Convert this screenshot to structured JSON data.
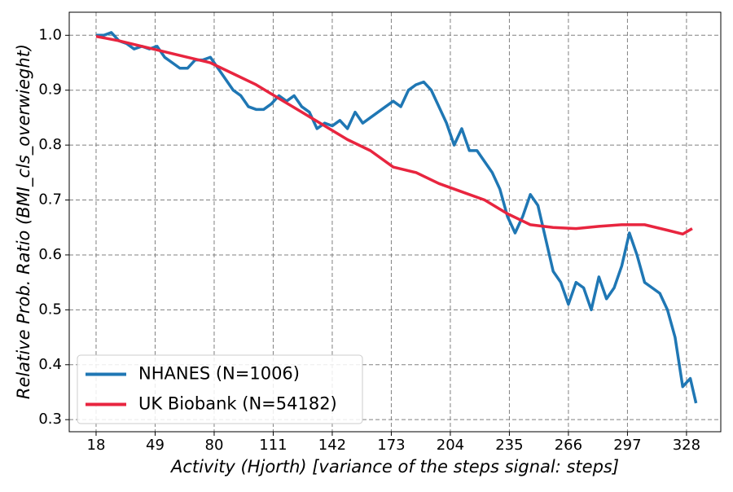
{
  "chart_data": {
    "type": "line",
    "xlabel": "Activity (Hjorth) [variance of the steps signal: steps]",
    "ylabel": "Relative Prob. Ratio (BMI_cls_overwieght)",
    "xlim": [
      3.9,
      346
    ],
    "ylim": [
      0.278,
      1.042
    ],
    "xticks": [
      18,
      49,
      80,
      111,
      142,
      173,
      204,
      235,
      266,
      297,
      328
    ],
    "yticks": [
      {
        "value": 1.0,
        "label": "1.0"
      },
      0.9,
      0.8,
      0.7,
      0.6,
      0.5,
      0.4,
      0.3
    ],
    "grid": true,
    "legend": "lower left",
    "series": [
      {
        "name": "NHANES (N=1006)",
        "color": "#1f77b4",
        "x": [
          18,
          22,
          26,
          30,
          34,
          38,
          42,
          46,
          50,
          54,
          58,
          62,
          66,
          70,
          74,
          78,
          82,
          86,
          90,
          94,
          98,
          102,
          106,
          110,
          114,
          118,
          122,
          126,
          130,
          134,
          138,
          142,
          146,
          150,
          154,
          158,
          162,
          166,
          170,
          174,
          178,
          182,
          186,
          190,
          194,
          198,
          202,
          206,
          210,
          214,
          218,
          222,
          226,
          230,
          234,
          238,
          242,
          246,
          250,
          254,
          258,
          262,
          266,
          270,
          274,
          278,
          282,
          286,
          290,
          294,
          298,
          302,
          306,
          310,
          314,
          318,
          322,
          326,
          330,
          333
        ],
        "values": [
          1.0,
          1.0,
          1.005,
          0.99,
          0.985,
          0.975,
          0.98,
          0.975,
          0.98,
          0.96,
          0.95,
          0.94,
          0.94,
          0.955,
          0.955,
          0.96,
          0.94,
          0.92,
          0.9,
          0.89,
          0.87,
          0.865,
          0.865,
          0.875,
          0.89,
          0.88,
          0.89,
          0.87,
          0.86,
          0.83,
          0.84,
          0.835,
          0.845,
          0.83,
          0.86,
          0.84,
          0.85,
          0.86,
          0.87,
          0.88,
          0.87,
          0.9,
          0.91,
          0.915,
          0.9,
          0.87,
          0.84,
          0.8,
          0.83,
          0.79,
          0.79,
          0.77,
          0.75,
          0.72,
          0.67,
          0.64,
          0.67,
          0.71,
          0.69,
          0.63,
          0.57,
          0.55,
          0.51,
          0.55,
          0.54,
          0.5,
          0.56,
          0.52,
          0.54,
          0.58,
          0.64,
          0.6,
          0.55,
          0.54,
          0.53,
          0.5,
          0.45,
          0.36,
          0.375,
          0.33
        ]
      },
      {
        "name": "UK Biobank (N=54182)",
        "color": "#e8253f",
        "x": [
          18,
          30,
          42,
          54,
          66,
          78,
          90,
          102,
          114,
          126,
          138,
          150,
          162,
          174,
          186,
          198,
          210,
          222,
          234,
          246,
          258,
          270,
          282,
          294,
          306,
          318,
          326,
          331
        ],
        "values": [
          0.998,
          0.99,
          0.98,
          0.97,
          0.96,
          0.95,
          0.93,
          0.91,
          0.885,
          0.86,
          0.835,
          0.81,
          0.79,
          0.76,
          0.75,
          0.73,
          0.715,
          0.7,
          0.675,
          0.655,
          0.65,
          0.648,
          0.652,
          0.655,
          0.655,
          0.645,
          0.638,
          0.648
        ]
      }
    ]
  }
}
